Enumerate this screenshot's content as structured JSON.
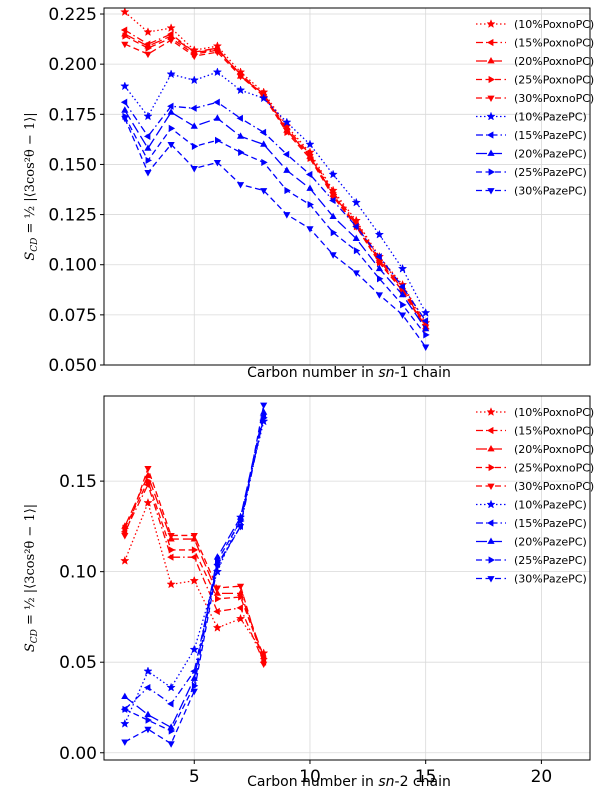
{
  "colors": {
    "red": "#ff0000",
    "blue": "#0000ff"
  },
  "chart_data": [
    {
      "type": "line",
      "xlabel_pre": "Carbon number in ",
      "xlabel_em": "sn",
      "xlabel_post": "-1 chain",
      "ylabel_main": "S",
      "ylabel_sub": "CD",
      "ylabel_rest": " = ½ |⟨3cos²θ − 1⟩|",
      "xlim": [
        1.1,
        22.1
      ],
      "ylim": [
        0.05,
        0.228
      ],
      "xticks": [],
      "yticks": [
        0.05,
        0.075,
        0.1,
        0.125,
        0.15,
        0.175,
        0.2,
        0.225
      ],
      "ytick_labels": [
        "0.050",
        "0.075",
        "0.100",
        "0.125",
        "0.150",
        "0.175",
        "0.200",
        "0.225"
      ],
      "grid": true,
      "legend_position": "top-right",
      "series": [
        {
          "name": "(10%PoxnoPC)",
          "color": "#ff0000",
          "dash": "dotted",
          "marker": "star",
          "x": [
            2,
            3,
            4,
            5,
            6,
            7,
            8,
            9,
            10,
            11,
            12,
            13,
            14,
            15
          ],
          "y": [
            0.226,
            0.216,
            0.218,
            0.207,
            0.209,
            0.196,
            0.186,
            0.169,
            0.156,
            0.137,
            0.122,
            0.104,
            0.09,
            0.071
          ]
        },
        {
          "name": "(15%PoxnoPC)",
          "color": "#ff0000",
          "dash": "dashdot",
          "marker": "tri-left",
          "x": [
            2,
            3,
            4,
            5,
            6,
            7,
            8,
            9,
            10,
            11,
            12,
            13,
            14,
            15
          ],
          "y": [
            0.217,
            0.21,
            0.215,
            0.206,
            0.207,
            0.195,
            0.185,
            0.168,
            0.155,
            0.136,
            0.121,
            0.103,
            0.089,
            0.07
          ]
        },
        {
          "name": "(20%PoxnoPC)",
          "color": "#ff0000",
          "dash": "longdash",
          "marker": "tri-up",
          "x": [
            2,
            3,
            4,
            5,
            6,
            7,
            8,
            9,
            10,
            11,
            12,
            13,
            14,
            15
          ],
          "y": [
            0.215,
            0.209,
            0.214,
            0.206,
            0.208,
            0.194,
            0.185,
            0.167,
            0.154,
            0.135,
            0.12,
            0.102,
            0.088,
            0.069
          ]
        },
        {
          "name": "(25%PoxnoPC)",
          "color": "#ff0000",
          "dash": "dashed",
          "marker": "tri-right",
          "x": [
            2,
            3,
            4,
            5,
            6,
            7,
            8,
            9,
            10,
            11,
            12,
            13,
            14,
            15
          ],
          "y": [
            0.214,
            0.208,
            0.213,
            0.205,
            0.207,
            0.195,
            0.184,
            0.166,
            0.153,
            0.134,
            0.119,
            0.101,
            0.087,
            0.068
          ]
        },
        {
          "name": "(30%PoxnoPC)",
          "color": "#ff0000",
          "dash": "dashed",
          "marker": "tri-down",
          "x": [
            2,
            3,
            4,
            5,
            6,
            7,
            8,
            9,
            10,
            11,
            12,
            13,
            14,
            15
          ],
          "y": [
            0.21,
            0.205,
            0.212,
            0.204,
            0.206,
            0.194,
            0.184,
            0.167,
            0.154,
            0.135,
            0.119,
            0.101,
            0.087,
            0.069
          ]
        },
        {
          "name": "(10%PazePC)",
          "color": "#0000ff",
          "dash": "dotted",
          "marker": "star",
          "x": [
            2,
            3,
            4,
            5,
            6,
            7,
            8,
            9,
            10,
            11,
            12,
            13,
            14,
            15
          ],
          "y": [
            0.189,
            0.174,
            0.195,
            0.192,
            0.196,
            0.187,
            0.183,
            0.171,
            0.16,
            0.145,
            0.131,
            0.115,
            0.098,
            0.076
          ]
        },
        {
          "name": "(15%PazePC)",
          "color": "#0000ff",
          "dash": "dashdot",
          "marker": "tri-left",
          "x": [
            2,
            3,
            4,
            5,
            6,
            7,
            8,
            9,
            10,
            11,
            12,
            13,
            14,
            15
          ],
          "y": [
            0.181,
            0.164,
            0.179,
            0.178,
            0.181,
            0.173,
            0.166,
            0.155,
            0.145,
            0.132,
            0.119,
            0.104,
            0.089,
            0.072
          ]
        },
        {
          "name": "(20%PazePC)",
          "color": "#0000ff",
          "dash": "longdash",
          "marker": "tri-up",
          "x": [
            2,
            3,
            4,
            5,
            6,
            7,
            8,
            9,
            10,
            11,
            12,
            13,
            14,
            15
          ],
          "y": [
            0.177,
            0.158,
            0.176,
            0.169,
            0.173,
            0.164,
            0.16,
            0.147,
            0.138,
            0.124,
            0.113,
            0.098,
            0.085,
            0.068
          ]
        },
        {
          "name": "(25%PazePC)",
          "color": "#0000ff",
          "dash": "dashed",
          "marker": "tri-right",
          "x": [
            2,
            3,
            4,
            5,
            6,
            7,
            8,
            9,
            10,
            11,
            12,
            13,
            14,
            15
          ],
          "y": [
            0.174,
            0.152,
            0.168,
            0.159,
            0.162,
            0.156,
            0.151,
            0.137,
            0.13,
            0.116,
            0.107,
            0.093,
            0.08,
            0.065
          ]
        },
        {
          "name": "(30%PazePC)",
          "color": "#0000ff",
          "dash": "dashed",
          "marker": "tri-down",
          "x": [
            2,
            3,
            4,
            5,
            6,
            7,
            8,
            9,
            10,
            11,
            12,
            13,
            14,
            15
          ],
          "y": [
            0.173,
            0.146,
            0.16,
            0.148,
            0.151,
            0.14,
            0.137,
            0.125,
            0.118,
            0.105,
            0.096,
            0.085,
            0.075,
            0.059
          ]
        }
      ]
    },
    {
      "type": "line",
      "xlabel_pre": "Carbon number in ",
      "xlabel_em": "sn",
      "xlabel_post": "-2 chain",
      "ylabel_main": "S",
      "ylabel_sub": "CD",
      "ylabel_rest": " = ½ |⟨3cos²θ − 1⟩|",
      "xlim": [
        1.1,
        22.1
      ],
      "ylim": [
        -0.004,
        0.197
      ],
      "xticks": [
        5,
        10,
        15,
        20
      ],
      "xtick_labels": [
        "5",
        "10",
        "15",
        "20"
      ],
      "yticks": [
        0.0,
        0.05,
        0.1,
        0.15
      ],
      "ytick_labels": [
        "0.00",
        "0.05",
        "0.10",
        "0.15"
      ],
      "grid": true,
      "legend_position": "top-right",
      "series": [
        {
          "name": "(10%PoxnoPC)",
          "color": "#ff0000",
          "dash": "dotted",
          "marker": "star",
          "x": [
            2,
            3,
            4,
            5,
            6,
            7,
            8
          ],
          "y": [
            0.106,
            0.138,
            0.093,
            0.095,
            0.069,
            0.074,
            0.055
          ]
        },
        {
          "name": "(15%PoxnoPC)",
          "color": "#ff0000",
          "dash": "dashdot",
          "marker": "tri-left",
          "x": [
            2,
            3,
            4,
            5,
            6,
            7,
            8
          ],
          "y": [
            0.122,
            0.148,
            0.108,
            0.108,
            0.078,
            0.08,
            0.05
          ]
        },
        {
          "name": "(20%PoxnoPC)",
          "color": "#ff0000",
          "dash": "longdash",
          "marker": "tri-up",
          "x": [
            2,
            3,
            4,
            5,
            6,
            7,
            8
          ],
          "y": [
            0.125,
            0.153,
            0.118,
            0.118,
            0.088,
            0.088,
            0.053
          ]
        },
        {
          "name": "(25%PoxnoPC)",
          "color": "#ff0000",
          "dash": "dashed",
          "marker": "tri-right",
          "x": [
            2,
            3,
            4,
            5,
            6,
            7,
            8
          ],
          "y": [
            0.124,
            0.15,
            0.112,
            0.112,
            0.085,
            0.086,
            0.052
          ]
        },
        {
          "name": "(30%PoxnoPC)",
          "color": "#ff0000",
          "dash": "dashed",
          "marker": "tri-down",
          "x": [
            2,
            3,
            4,
            5,
            6,
            7,
            8
          ],
          "y": [
            0.12,
            0.157,
            0.12,
            0.12,
            0.091,
            0.092,
            0.049
          ]
        },
        {
          "name": "(10%PazePC)",
          "color": "#0000ff",
          "dash": "dotted",
          "marker": "star",
          "x": [
            2,
            3,
            4,
            5,
            6,
            7,
            8
          ],
          "y": [
            0.016,
            0.045,
            0.036,
            0.057,
            0.1,
            0.13,
            0.183
          ]
        },
        {
          "name": "(15%PazePC)",
          "color": "#0000ff",
          "dash": "dashdot",
          "marker": "tri-left",
          "x": [
            2,
            3,
            4,
            5,
            6,
            7,
            8
          ],
          "y": [
            0.024,
            0.036,
            0.027,
            0.045,
            0.104,
            0.125,
            0.186
          ]
        },
        {
          "name": "(20%PazePC)",
          "color": "#0000ff",
          "dash": "longdash",
          "marker": "tri-up",
          "x": [
            2,
            3,
            4,
            5,
            6,
            7,
            8
          ],
          "y": [
            0.031,
            0.021,
            0.014,
            0.041,
            0.108,
            0.13,
            0.188
          ]
        },
        {
          "name": "(25%PazePC)",
          "color": "#0000ff",
          "dash": "dashed",
          "marker": "tri-right",
          "x": [
            2,
            3,
            4,
            5,
            6,
            7,
            8
          ],
          "y": [
            0.024,
            0.018,
            0.012,
            0.037,
            0.106,
            0.128,
            0.185
          ]
        },
        {
          "name": "(30%PazePC)",
          "color": "#0000ff",
          "dash": "dashed",
          "marker": "tri-down",
          "x": [
            2,
            3,
            4,
            5,
            6,
            7,
            8
          ],
          "y": [
            0.006,
            0.013,
            0.005,
            0.034,
            0.103,
            0.125,
            0.192
          ]
        }
      ]
    }
  ]
}
